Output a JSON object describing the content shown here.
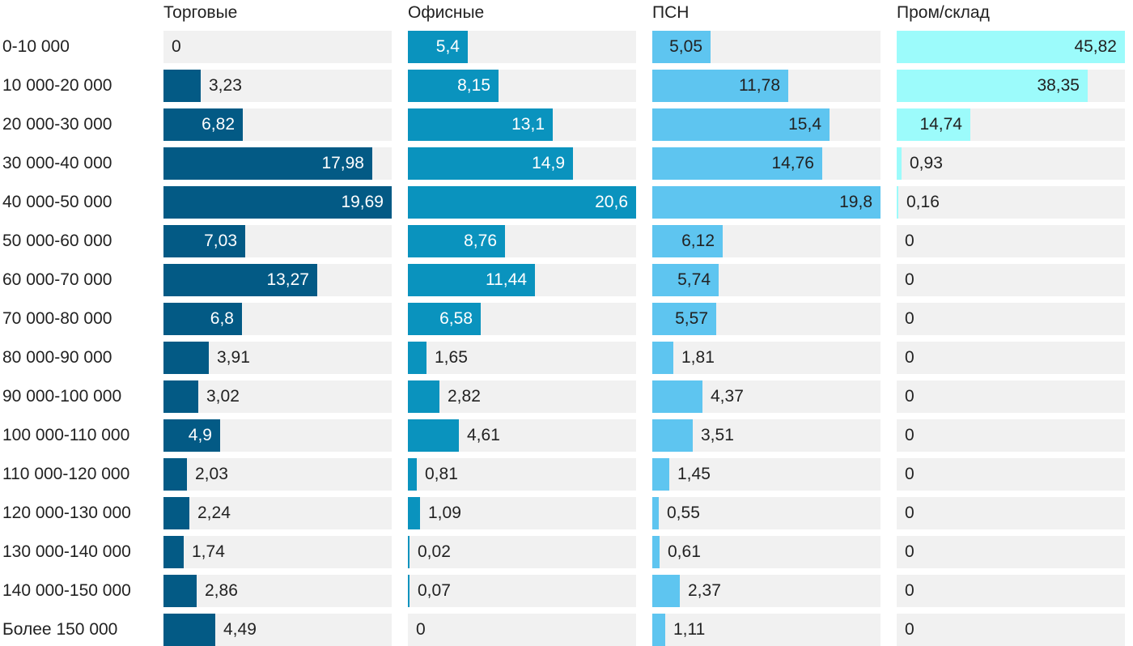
{
  "chart_data": {
    "type": "bar",
    "orientation": "horizontal",
    "layout": "small-multiples",
    "categories": [
      "0-10 000",
      "10 000-20 000",
      "20 000-30 000",
      "30 000-40 000",
      "40 000-50 000",
      "50 000-60 000",
      "60 000-70 000",
      "70 000-80 000",
      "80 000-90 000",
      "90 000-100 000",
      "100 000-110 000",
      "110 000-120 000",
      "120 000-130 000",
      "130 000-140 000",
      "140 000-150 000",
      "Более 150 000"
    ],
    "series": [
      {
        "name": "Торговые",
        "color": "#035a85",
        "label_inside_color": "#ffffff",
        "max": 19.69,
        "values": [
          0,
          3.23,
          6.82,
          17.98,
          19.69,
          7.03,
          13.27,
          6.8,
          3.91,
          3.02,
          4.9,
          2.03,
          2.24,
          1.74,
          2.86,
          4.49
        ],
        "labels": [
          "0",
          "3,23",
          "6,82",
          "17,98",
          "19,69",
          "7,03",
          "13,27",
          "6,8",
          "3,91",
          "3,02",
          "4,9",
          "2,03",
          "2,24",
          "1,74",
          "2,86",
          "4,49"
        ]
      },
      {
        "name": "Офисные",
        "color": "#0a93be",
        "label_inside_color": "#ffffff",
        "max": 20.6,
        "values": [
          5.4,
          8.15,
          13.1,
          14.9,
          20.6,
          8.76,
          11.44,
          6.58,
          1.65,
          2.82,
          4.61,
          0.81,
          1.09,
          0.02,
          0.07,
          0
        ],
        "labels": [
          "5,4",
          "8,15",
          "13,1",
          "14,9",
          "20,6",
          "8,76",
          "11,44",
          "6,58",
          "1,65",
          "2,82",
          "4,61",
          "0,81",
          "1,09",
          "0,02",
          "0,07",
          "0"
        ]
      },
      {
        "name": "ПСН",
        "color": "#5ec5f0",
        "label_inside_color": "#222222",
        "max": 19.8,
        "values": [
          5.05,
          11.78,
          15.4,
          14.76,
          19.8,
          6.12,
          5.74,
          5.57,
          1.81,
          4.37,
          3.51,
          1.45,
          0.55,
          0.61,
          2.37,
          1.11
        ],
        "labels": [
          "5,05",
          "11,78",
          "15,4",
          "14,76",
          "19,8",
          "6,12",
          "5,74",
          "5,57",
          "1,81",
          "4,37",
          "3,51",
          "1,45",
          "0,55",
          "0,61",
          "2,37",
          "1,11"
        ]
      },
      {
        "name": "Пром/склад",
        "color": "#9cfbfb",
        "label_inside_color": "#222222",
        "max": 45.82,
        "values": [
          45.82,
          38.35,
          14.74,
          0.93,
          0.16,
          0,
          0,
          0,
          0,
          0,
          0,
          0,
          0,
          0,
          0,
          0
        ],
        "labels": [
          "45,82",
          "38,35",
          "14,74",
          "0,93",
          "0,16",
          "0",
          "0",
          "0",
          "0",
          "0",
          "0",
          "0",
          "0",
          "0",
          "0",
          "0"
        ]
      }
    ]
  }
}
